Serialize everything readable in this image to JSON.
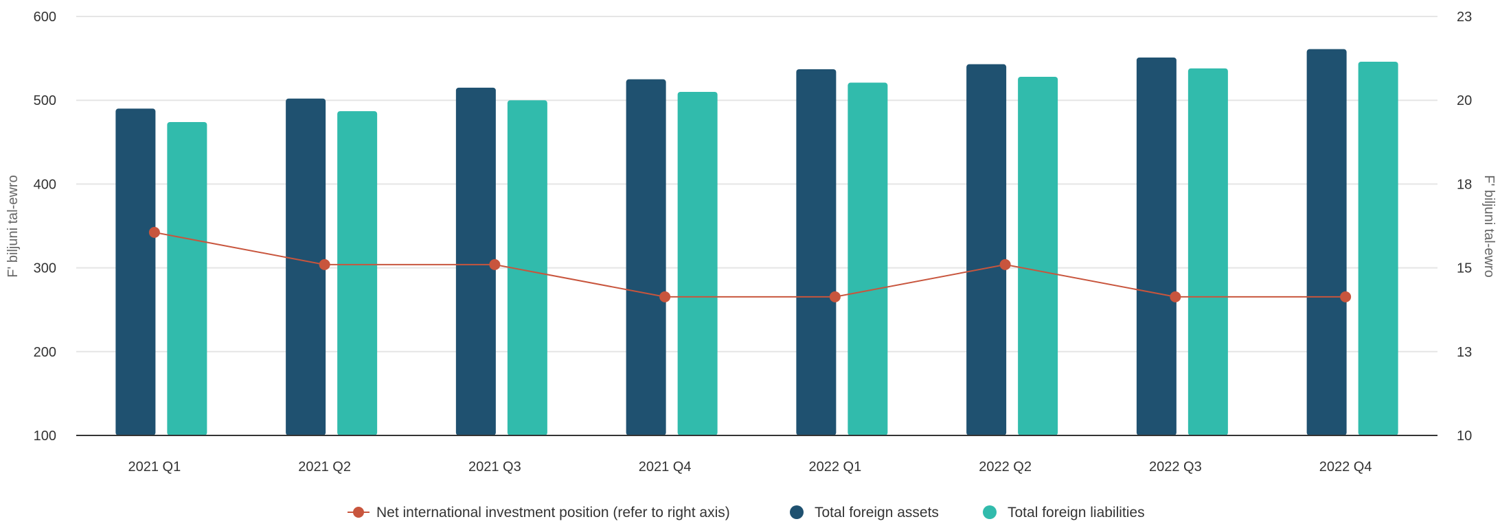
{
  "chart_data": {
    "type": "bar",
    "categories": [
      "2021 Q1",
      "2021 Q2",
      "2021 Q3",
      "2021 Q4",
      "2022 Q1",
      "2022 Q2",
      "2022 Q3",
      "2022 Q4"
    ],
    "series": [
      {
        "name": "Total foreign assets",
        "type": "bar",
        "axis": "left",
        "color": "#1f5170",
        "values": [
          490,
          502,
          515,
          525,
          537,
          543,
          551,
          561
        ]
      },
      {
        "name": "Total foreign liabilities",
        "type": "bar",
        "axis": "left",
        "color": "#31bbac",
        "values": [
          474,
          487,
          500,
          510,
          521,
          528,
          538,
          546
        ]
      },
      {
        "name": "Net international investment position (refer to right axis)",
        "type": "line",
        "axis": "right",
        "color": "#c8553d",
        "values": [
          16.3,
          15.3,
          15.3,
          14.3,
          14.3,
          15.3,
          14.3,
          14.3
        ]
      }
    ],
    "y_left": {
      "label": "F' biljuni tal-ewro",
      "min": 100,
      "max": 600,
      "ticks": [
        100,
        200,
        300,
        400,
        500,
        600
      ]
    },
    "y_right": {
      "label": "F' biljuni tal-ewro",
      "min": 10,
      "max": 23,
      "ticks": [
        "10",
        "13",
        "15",
        "18",
        "20",
        "23"
      ]
    },
    "grid": true,
    "legend_position": "bottom"
  }
}
